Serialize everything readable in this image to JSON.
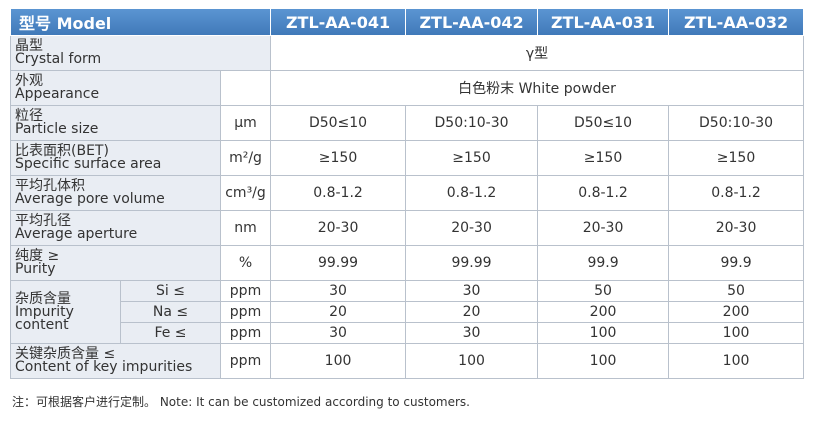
{
  "header": {
    "title": "型号 Model",
    "columns": [
      "ZTL-AA-041",
      "ZTL-AA-042",
      "ZTL-AA-031",
      "ZTL-AA-032"
    ]
  },
  "rows": [
    {
      "label_zh": "晶型",
      "label_en": "Crystal form",
      "value": "γ型"
    },
    {
      "label_zh": "外观",
      "label_en": "Appearance",
      "value": "白色粉末  White powder"
    },
    {
      "label_zh": "粒径",
      "label_en": "Particle size",
      "unit": "μm",
      "values": [
        "D50≤10",
        "D50:10-30",
        "D50≤10",
        "D50:10-30"
      ]
    },
    {
      "label_zh": "比表面积(BET)",
      "label_en": "Specific surface area",
      "unit": "m²/g",
      "values": [
        "≥150",
        "≥150",
        "≥150",
        "≥150"
      ]
    },
    {
      "label_zh": "平均孔体积",
      "label_en": "Average pore volume",
      "unit": "cm³/g",
      "values": [
        "0.8-1.2",
        "0.8-1.2",
        "0.8-1.2",
        "0.8-1.2"
      ]
    },
    {
      "label_zh": "平均孔径",
      "label_en": "Average aperture",
      "unit": "nm",
      "values": [
        "20-30",
        "20-30",
        "20-30",
        "20-30"
      ]
    },
    {
      "label_zh": "纯度 ≥",
      "label_en": "Purity",
      "unit": "%",
      "values": [
        "99.99",
        "99.99",
        "99.9",
        "99.9"
      ]
    },
    {
      "label_zh": "杂质含量",
      "label_en": "Impurity content",
      "subrows": [
        {
          "element": "Si ≤",
          "unit": "ppm",
          "values": [
            "30",
            "30",
            "50",
            "50"
          ]
        },
        {
          "element": "Na ≤",
          "unit": "ppm",
          "values": [
            "20",
            "20",
            "200",
            "200"
          ]
        },
        {
          "element": "Fe ≤",
          "unit": "ppm",
          "values": [
            "30",
            "30",
            "100",
            "100"
          ]
        }
      ]
    },
    {
      "label_zh": "关键杂质含量 ≤",
      "label_en": "Content of key impurities",
      "unit": "ppm",
      "values": [
        "100",
        "100",
        "100",
        "100"
      ]
    }
  ],
  "note": "注：可根据客户进行定制。 Note: It can be customized according to customers."
}
